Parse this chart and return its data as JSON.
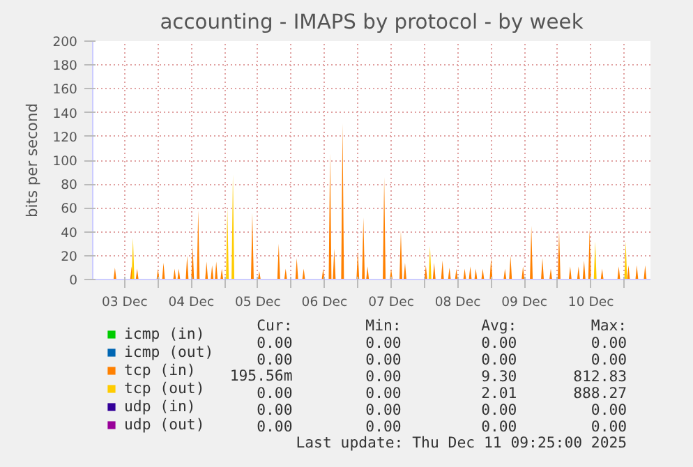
{
  "chart_data": {
    "type": "area",
    "title": "accounting - IMAPS by protocol - by week",
    "ylabel": "bits per second",
    "xlim": [
      "2025-12-03T00:30",
      "2025-12-11T09:25"
    ],
    "ylim": [
      0,
      200
    ],
    "xticks": [
      {
        "value": "2025-12-03T12:00",
        "label": "03 Dec"
      },
      {
        "value": "2025-12-04T00:00",
        "label": null
      },
      {
        "value": "2025-12-04T12:00",
        "label": "04 Dec"
      },
      {
        "value": "2025-12-05T00:00",
        "label": null
      },
      {
        "value": "2025-12-05T12:00",
        "label": "05 Dec"
      },
      {
        "value": "2025-12-06T00:00",
        "label": null
      },
      {
        "value": "2025-12-06T12:00",
        "label": "06 Dec"
      },
      {
        "value": "2025-12-07T00:00",
        "label": null
      },
      {
        "value": "2025-12-07T12:00",
        "label": "07 Dec"
      },
      {
        "value": "2025-12-08T00:00",
        "label": null
      },
      {
        "value": "2025-12-08T12:00",
        "label": "08 Dec"
      },
      {
        "value": "2025-12-09T00:00",
        "label": null
      },
      {
        "value": "2025-12-09T12:00",
        "label": "09 Dec"
      },
      {
        "value": "2025-12-10T00:00",
        "label": null
      },
      {
        "value": "2025-12-10T12:00",
        "label": "10 Dec"
      },
      {
        "value": "2025-12-11T00:00",
        "label": null
      }
    ],
    "yticks": [
      0,
      20,
      40,
      60,
      80,
      100,
      120,
      140,
      160,
      180,
      200
    ],
    "grid": true,
    "legend": "bottom",
    "series": [
      {
        "name": "icmp (in)",
        "color": "#00cc00"
      },
      {
        "name": "icmp (out)",
        "color": "#0066b3"
      },
      {
        "name": "tcp (in)",
        "color": "#ff8000",
        "x": [
          "2025-12-03T08:00",
          "2025-12-03T08:30",
          "2025-12-03T09:00",
          "2025-12-03T14:00",
          "2025-12-03T14:30",
          "2025-12-03T15:00",
          "2025-12-03T16:00",
          "2025-12-03T16:30",
          "2025-12-03T17:00",
          "2025-12-03T23:30",
          "2025-12-04T00:00",
          "2025-12-04T00:30",
          "2025-12-04T01:30",
          "2025-12-04T02:00",
          "2025-12-04T02:30",
          "2025-12-04T05:30",
          "2025-12-04T06:00",
          "2025-12-04T06:30",
          "2025-12-04T07:00",
          "2025-12-04T07:30",
          "2025-12-04T08:00",
          "2025-12-04T10:00",
          "2025-12-04T10:30",
          "2025-12-04T11:00",
          "2025-12-04T12:00",
          "2025-12-04T12:30",
          "2025-12-04T13:00",
          "2025-12-04T14:00",
          "2025-12-04T14:30",
          "2025-12-04T15:00",
          "2025-12-04T17:00",
          "2025-12-04T17:30",
          "2025-12-04T18:00",
          "2025-12-04T19:00",
          "2025-12-04T19:30",
          "2025-12-04T20:00",
          "2025-12-04T20:30",
          "2025-12-04T21:00",
          "2025-12-04T21:30",
          "2025-12-04T22:30",
          "2025-12-04T23:00",
          "2025-12-04T23:30",
          "2025-12-05T09:30",
          "2025-12-05T10:00",
          "2025-12-05T10:30",
          "2025-12-05T12:00",
          "2025-12-05T12:30",
          "2025-12-05T13:00",
          "2025-12-05T19:00",
          "2025-12-05T19:30",
          "2025-12-05T20:00",
          "2025-12-05T21:30",
          "2025-12-05T22:00",
          "2025-12-05T22:30",
          "2025-12-06T01:30",
          "2025-12-06T02:00",
          "2025-12-06T02:30",
          "2025-12-06T04:00",
          "2025-12-06T04:30",
          "2025-12-06T05:00",
          "2025-12-06T11:00",
          "2025-12-06T11:30",
          "2025-12-06T12:00",
          "2025-12-06T13:30",
          "2025-12-06T14:00",
          "2025-12-06T14:30",
          "2025-12-06T15:00",
          "2025-12-06T15:30",
          "2025-12-06T16:00",
          "2025-12-06T18:00",
          "2025-12-06T18:30",
          "2025-12-06T19:00",
          "2025-12-06T23:30",
          "2025-12-07T00:00",
          "2025-12-07T00:30",
          "2025-12-07T01:30",
          "2025-12-07T02:00",
          "2025-12-07T02:30",
          "2025-12-07T03:00",
          "2025-12-07T03:30",
          "2025-12-07T04:00",
          "2025-12-07T09:00",
          "2025-12-07T09:30",
          "2025-12-07T10:00",
          "2025-12-07T11:30",
          "2025-12-07T12:00",
          "2025-12-07T12:30",
          "2025-12-07T15:00",
          "2025-12-07T15:30",
          "2025-12-07T16:00",
          "2025-12-07T16:30",
          "2025-12-07T17:00",
          "2025-12-07T17:30",
          "2025-12-08T00:00",
          "2025-12-08T00:30",
          "2025-12-08T01:00",
          "2025-12-08T03:00",
          "2025-12-08T03:30",
          "2025-12-08T04:00",
          "2025-12-08T06:00",
          "2025-12-08T06:30",
          "2025-12-08T07:00",
          "2025-12-08T08:30",
          "2025-12-08T09:00",
          "2025-12-08T09:30",
          "2025-12-08T11:00",
          "2025-12-08T11:30",
          "2025-12-08T12:00",
          "2025-12-08T14:00",
          "2025-12-08T14:30",
          "2025-12-08T15:00",
          "2025-12-08T16:00",
          "2025-12-08T16:30",
          "2025-12-08T17:00",
          "2025-12-08T18:00",
          "2025-12-08T18:30",
          "2025-12-08T19:00",
          "2025-12-08T20:30",
          "2025-12-08T21:00",
          "2025-12-08T21:30",
          "2025-12-08T23:30",
          "2025-12-09T00:00",
          "2025-12-09T00:30",
          "2025-12-09T04:30",
          "2025-12-09T05:00",
          "2025-12-09T05:30",
          "2025-12-09T06:30",
          "2025-12-09T07:00",
          "2025-12-09T07:30",
          "2025-12-09T11:00",
          "2025-12-09T11:30",
          "2025-12-09T12:00",
          "2025-12-09T14:00",
          "2025-12-09T14:30",
          "2025-12-09T15:00",
          "2025-12-09T18:00",
          "2025-12-09T18:30",
          "2025-12-09T19:00",
          "2025-12-09T21:00",
          "2025-12-09T21:30",
          "2025-12-09T22:00",
          "2025-12-10T00:00",
          "2025-12-10T00:30",
          "2025-12-10T01:00",
          "2025-12-10T04:00",
          "2025-12-10T04:30",
          "2025-12-10T05:00",
          "2025-12-10T07:00",
          "2025-12-10T07:30",
          "2025-12-10T08:00",
          "2025-12-10T09:00",
          "2025-12-10T09:30",
          "2025-12-10T10:00",
          "2025-12-10T11:00",
          "2025-12-10T11:30",
          "2025-12-10T12:00",
          "2025-12-10T15:30",
          "2025-12-10T16:00",
          "2025-12-10T16:30",
          "2025-12-10T21:30",
          "2025-12-10T22:00",
          "2025-12-10T22:30",
          "2025-12-11T01:00",
          "2025-12-11T01:30",
          "2025-12-11T02:00",
          "2025-12-11T04:00",
          "2025-12-11T04:30",
          "2025-12-11T05:00",
          "2025-12-11T07:00",
          "2025-12-11T07:30",
          "2025-12-11T08:00"
        ],
        "values": [
          0,
          10,
          0,
          0,
          11,
          0,
          0,
          9,
          0,
          0,
          9,
          0,
          0,
          14,
          0,
          0,
          9,
          0,
          0,
          9,
          0,
          0,
          20,
          0,
          0,
          28,
          0,
          0,
          58,
          0,
          0,
          15,
          0,
          0,
          12,
          0,
          0,
          15,
          0,
          0,
          9,
          0,
          0,
          56,
          0,
          0,
          7,
          0,
          0,
          30,
          0,
          0,
          9,
          0,
          0,
          18,
          0,
          0,
          9,
          0,
          0,
          9,
          0,
          0,
          106,
          0,
          0,
          26,
          0,
          0,
          131,
          0,
          0,
          24,
          0,
          0,
          52,
          0,
          0,
          11,
          0,
          0,
          86,
          0,
          0,
          9,
          0,
          0,
          41,
          0,
          0,
          14,
          0,
          0,
          12,
          0,
          0,
          14,
          0,
          0,
          16,
          0,
          0,
          10,
          0,
          0,
          9,
          0,
          0,
          9,
          0,
          0,
          11,
          0,
          0,
          9,
          0,
          0,
          9,
          0,
          0,
          18,
          0,
          0,
          9,
          0,
          0,
          20,
          0,
          0,
          11,
          0,
          0,
          45,
          0,
          0,
          18,
          0,
          0,
          9,
          0,
          0,
          41,
          0,
          0,
          11,
          0,
          0,
          11,
          0,
          0,
          16,
          0,
          0,
          42,
          0,
          0,
          9,
          0,
          0,
          11,
          0,
          0,
          12,
          0,
          0,
          12,
          0,
          0,
          12,
          0
        ]
      },
      {
        "name": "tcp (out)",
        "color": "#ffcc00",
        "x": [
          "2025-12-03T14:30",
          "2025-12-03T15:00",
          "2025-12-03T15:30",
          "2025-12-05T00:30",
          "2025-12-05T01:00",
          "2025-12-05T01:30",
          "2025-12-05T02:30",
          "2025-12-05T03:00",
          "2025-12-05T03:30",
          "2025-12-08T01:30",
          "2025-12-08T02:00",
          "2025-12-08T02:30",
          "2025-12-10T13:00",
          "2025-12-10T13:30",
          "2025-12-10T14:00",
          "2025-12-11T00:00",
          "2025-12-11T00:30",
          "2025-12-11T01:00"
        ],
        "values": [
          0,
          35,
          0,
          0,
          60,
          0,
          0,
          88,
          0,
          0,
          28,
          0,
          0,
          32,
          0,
          0,
          32,
          0
        ]
      },
      {
        "name": "udp (in)",
        "color": "#330099"
      },
      {
        "name": "udp (out)",
        "color": "#990099"
      }
    ],
    "annotations": [
      "Cur:",
      "Min:",
      "Avg:",
      "Max:",
      "0.00",
      "0.00",
      "0.00",
      "0.00",
      "0.00",
      "0.00",
      "0.00",
      "0.00",
      "195.56m",
      "0.00",
      "9.30",
      "812.83",
      "0.00",
      "0.00",
      "2.01",
      "888.27",
      "0.00",
      "0.00",
      "0.00",
      "0.00",
      "0.00",
      "0.00",
      "0.00",
      "0.00",
      "Last update: Thu Dec 11 09:25:00 2025"
    ]
  }
}
